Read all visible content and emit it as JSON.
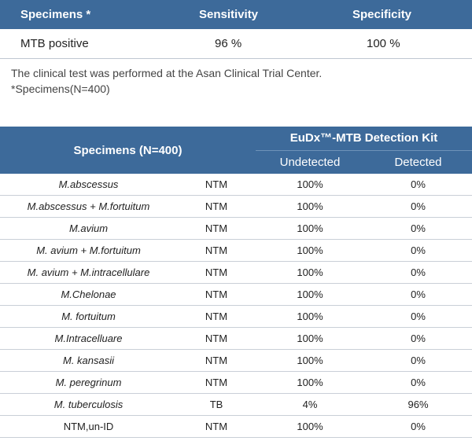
{
  "table1": {
    "headers": [
      "Specimens *",
      "Sensitivity",
      "Specificity"
    ],
    "row": [
      "MTB positive",
      "96 %",
      "100 %"
    ]
  },
  "notes": {
    "line1": "The clinical test was performed at the Asan Clinical Trial Center.",
    "line2": "*Specimens(N=400)"
  },
  "table2": {
    "col1_header": "Specimens (N=400)",
    "group_header": "EuDx™-MTB Detection Kit",
    "sub_headers": [
      "Undetected",
      "Detected"
    ],
    "rows": [
      {
        "specimen": "M.abscessus",
        "type": "NTM",
        "undetected": "100%",
        "detected": "0%"
      },
      {
        "specimen": "M.abscessus + M.fortuitum",
        "type": "NTM",
        "undetected": "100%",
        "detected": "0%"
      },
      {
        "specimen": "M.avium",
        "type": "NTM",
        "undetected": "100%",
        "detected": "0%"
      },
      {
        "specimen": "M. avium + M.fortuitum",
        "type": "NTM",
        "undetected": "100%",
        "detected": "0%"
      },
      {
        "specimen": "M. avium + M.intracellulare",
        "type": "NTM",
        "undetected": "100%",
        "detected": "0%"
      },
      {
        "specimen": "M.Chelonae",
        "type": "NTM",
        "undetected": "100%",
        "detected": "0%"
      },
      {
        "specimen": "M. fortuitum",
        "type": "NTM",
        "undetected": "100%",
        "detected": "0%"
      },
      {
        "specimen": "M.Intracelluare",
        "type": "NTM",
        "undetected": "100%",
        "detected": "0%"
      },
      {
        "specimen": "M. kansasii",
        "type": "NTM",
        "undetected": "100%",
        "detected": "0%"
      },
      {
        "specimen": "M. peregrinum",
        "type": "NTM",
        "undetected": "100%",
        "detected": "0%"
      },
      {
        "specimen": "M. tuberculosis",
        "type": "TB",
        "undetected": "4%",
        "detected": "96%"
      },
      {
        "specimen": "NTM,un-ID",
        "type": "NTM",
        "undetected": "100%",
        "detected": "0%",
        "plain": true
      }
    ]
  }
}
